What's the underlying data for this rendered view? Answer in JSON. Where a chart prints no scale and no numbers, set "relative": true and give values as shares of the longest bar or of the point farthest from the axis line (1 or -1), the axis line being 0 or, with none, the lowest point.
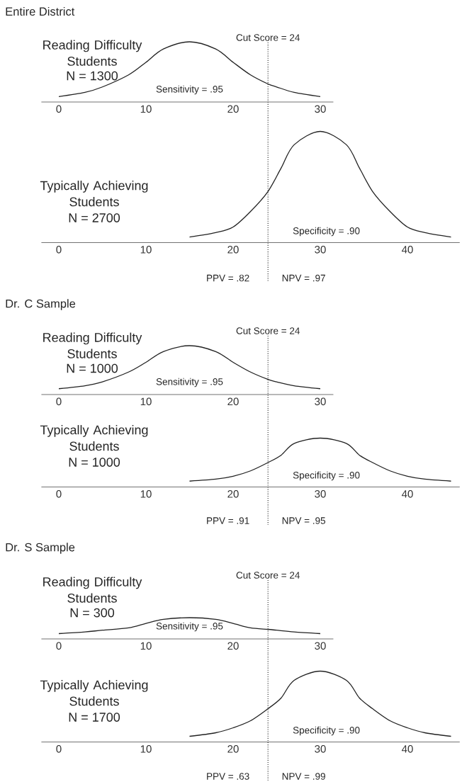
{
  "chart_data": [
    {
      "type": "line",
      "title": "Entire District",
      "relative": true,
      "x": [
        0,
        3,
        5,
        8,
        10,
        12,
        15,
        18,
        20,
        22,
        24,
        25,
        27,
        30
      ],
      "xlim": [
        -2,
        31.5
      ],
      "xticks": [
        0,
        10,
        20,
        30
      ],
      "series": [
        {
          "name": "Reading Difficulty Students",
          "color": "#222222",
          "values": [
            0.09,
            0.16,
            0.25,
            0.45,
            0.66,
            0.88,
            1,
            0.88,
            0.66,
            0.45,
            0.3,
            0.25,
            0.16,
            0.09
          ]
        }
      ],
      "annotations": [
        "N = 1300",
        "Sensitivity = .95"
      ],
      "ref_lines": [
        {
          "axis": "x",
          "value": 24,
          "label": "Cut Score = 24",
          "line_style": "dotted"
        }
      ]
    },
    {
      "type": "line",
      "relative": true,
      "x": [
        15,
        18,
        20,
        22,
        24,
        25.5,
        27,
        30,
        33,
        34.5,
        36,
        38,
        40,
        42,
        45
      ],
      "xlim": [
        -2,
        46
      ],
      "xticks": [
        0,
        10,
        20,
        30,
        40
      ],
      "series": [
        {
          "name": "Typically Achieving Students",
          "color": "#222222",
          "values": [
            0.05,
            0.09,
            0.14,
            0.28,
            0.46,
            0.67,
            0.88,
            1,
            0.88,
            0.67,
            0.46,
            0.28,
            0.14,
            0.09,
            0.05
          ]
        }
      ],
      "annotations": [
        "N = 2700",
        "Specificity = .90",
        "PPV = .82",
        "NPV = .97"
      ],
      "ref_lines": [
        {
          "axis": "x",
          "value": 24,
          "line_style": "dotted"
        }
      ]
    },
    {
      "type": "line",
      "title": "Dr. C Sample",
      "relative": true,
      "x": [
        0,
        3,
        5,
        8,
        10,
        12,
        15,
        18,
        20,
        22,
        24,
        25,
        27,
        30
      ],
      "xlim": [
        -2,
        31.5
      ],
      "xticks": [
        0,
        10,
        20,
        30
      ],
      "series": [
        {
          "name": "Reading Difficulty Students",
          "color": "#222222",
          "values": [
            0.12,
            0.18,
            0.26,
            0.46,
            0.66,
            0.88,
            1,
            0.88,
            0.66,
            0.46,
            0.31,
            0.26,
            0.18,
            0.12
          ]
        }
      ],
      "annotations": [
        "N = 1000",
        "Sensitivity = .95"
      ],
      "ref_lines": [
        {
          "axis": "x",
          "value": 24,
          "label": "Cut Score = 24",
          "line_style": "dotted"
        }
      ]
    },
    {
      "type": "line",
      "relative": true,
      "x": [
        15,
        18,
        20,
        22,
        24,
        25.5,
        27,
        30,
        33,
        34.5,
        36,
        38,
        40,
        42,
        45
      ],
      "xlim": [
        -2,
        46
      ],
      "xticks": [
        0,
        10,
        20,
        30,
        40
      ],
      "series": [
        {
          "name": "Typically Achieving Students",
          "color": "#222222",
          "values": [
            0.12,
            0.16,
            0.22,
            0.33,
            0.5,
            0.65,
            0.89,
            1,
            0.89,
            0.65,
            0.5,
            0.33,
            0.22,
            0.16,
            0.12
          ]
        }
      ],
      "annotations": [
        "N = 1000",
        "Specificity = .90",
        "PPV = .91",
        "NPV = .95"
      ],
      "ref_lines": [
        {
          "axis": "x",
          "value": 24,
          "line_style": "dotted"
        }
      ]
    },
    {
      "type": "line",
      "title": "Dr. S Sample",
      "relative": true,
      "x": [
        0,
        3,
        5,
        8,
        10,
        12,
        15,
        18,
        20,
        22,
        24,
        25,
        27,
        30
      ],
      "xlim": [
        -2,
        31.5
      ],
      "xticks": [
        0,
        10,
        20,
        30
      ],
      "series": [
        {
          "name": "Reading Difficulty Students",
          "color": "#222222",
          "values": [
            0.25,
            0.33,
            0.41,
            0.52,
            0.73,
            0.92,
            1,
            0.92,
            0.73,
            0.52,
            0.45,
            0.41,
            0.33,
            0.25
          ]
        }
      ],
      "annotations": [
        "N = 300",
        "Sensitivity = .95"
      ],
      "ref_lines": [
        {
          "axis": "x",
          "value": 24,
          "label": "Cut Score = 24",
          "line_style": "dotted"
        }
      ]
    },
    {
      "type": "line",
      "relative": true,
      "x": [
        15,
        18,
        20,
        22,
        24,
        25.5,
        27,
        30,
        33,
        34.5,
        36,
        38,
        40,
        42,
        45
      ],
      "xlim": [
        -2,
        46
      ],
      "xticks": [
        0,
        10,
        20,
        30,
        40
      ],
      "series": [
        {
          "name": "Typically Achieving Students",
          "color": "#222222",
          "values": [
            0.08,
            0.13,
            0.2,
            0.3,
            0.47,
            0.62,
            0.87,
            1,
            0.87,
            0.62,
            0.47,
            0.3,
            0.2,
            0.13,
            0.08
          ]
        }
      ],
      "annotations": [
        "N = 1700",
        "Specificity = .90",
        "PPV = .63",
        "NPV = .99"
      ],
      "ref_lines": [
        {
          "axis": "x",
          "value": 24,
          "line_style": "dotted"
        }
      ]
    }
  ]
}
